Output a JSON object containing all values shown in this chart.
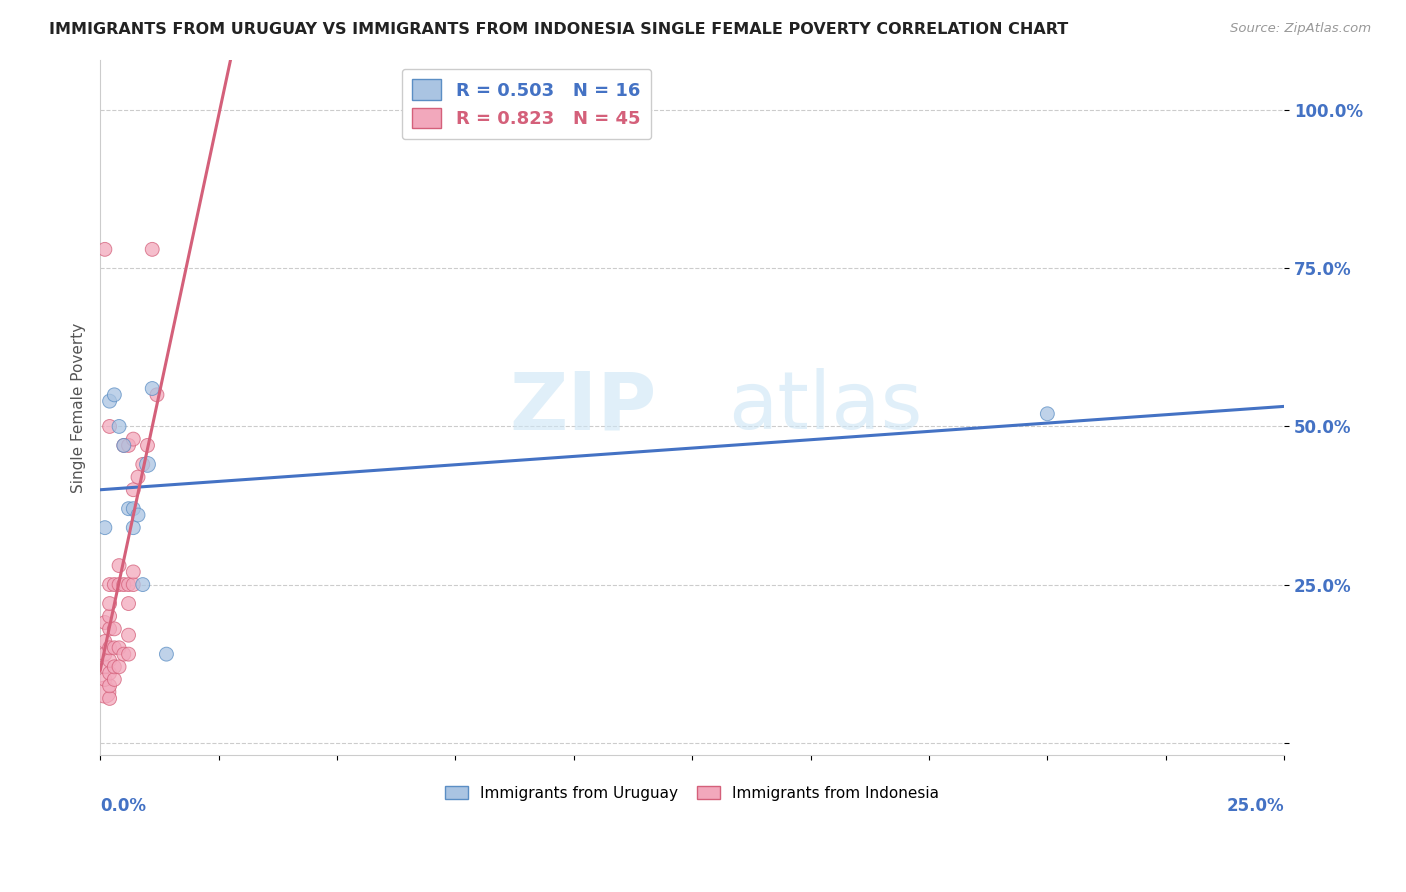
{
  "title": "IMMIGRANTS FROM URUGUAY VS IMMIGRANTS FROM INDONESIA SINGLE FEMALE POVERTY CORRELATION CHART",
  "source": "Source: ZipAtlas.com",
  "ylabel": "Single Female Poverty",
  "xlim": [
    0.0,
    0.25
  ],
  "ylim": [
    -0.02,
    1.08
  ],
  "yticks": [
    0.0,
    0.25,
    0.5,
    0.75,
    1.0
  ],
  "ytick_labels": [
    "",
    "25.0%",
    "50.0%",
    "75.0%",
    "100.0%"
  ],
  "watermark_zip": "ZIP",
  "watermark_atlas": "atlas",
  "uruguay_color": "#aac4e2",
  "indonesia_color": "#f2a8bc",
  "uruguay_edge_color": "#5b8ec4",
  "indonesia_edge_color": "#d4607a",
  "uruguay_line_color": "#4472c4",
  "indonesia_line_color": "#d4607a",
  "uruguay_R": 0.503,
  "uruguay_N": 16,
  "indonesia_R": 0.823,
  "indonesia_N": 45,
  "uruguay_points_x": [
    0.001,
    0.002,
    0.003,
    0.004,
    0.005,
    0.006,
    0.007,
    0.007,
    0.008,
    0.009,
    0.01,
    0.011,
    0.014,
    0.2
  ],
  "uruguay_points_y": [
    0.34,
    0.54,
    0.55,
    0.5,
    0.47,
    0.37,
    0.34,
    0.37,
    0.36,
    0.25,
    0.44,
    0.56,
    0.14,
    0.52
  ],
  "uruguay_sizes": [
    100,
    100,
    100,
    100,
    100,
    100,
    100,
    100,
    100,
    100,
    130,
    100,
    100,
    100
  ],
  "indonesia_points_x": [
    0.001,
    0.001,
    0.001,
    0.001,
    0.001,
    0.001,
    0.001,
    0.002,
    0.002,
    0.002,
    0.002,
    0.002,
    0.002,
    0.002,
    0.002,
    0.002,
    0.002,
    0.003,
    0.003,
    0.003,
    0.003,
    0.003,
    0.004,
    0.004,
    0.004,
    0.004,
    0.005,
    0.005,
    0.005,
    0.006,
    0.006,
    0.006,
    0.006,
    0.006,
    0.007,
    0.007,
    0.007,
    0.007,
    0.008,
    0.009,
    0.01,
    0.011,
    0.012
  ],
  "indonesia_points_y": [
    0.08,
    0.1,
    0.12,
    0.14,
    0.16,
    0.19,
    0.78,
    0.07,
    0.09,
    0.11,
    0.13,
    0.15,
    0.18,
    0.2,
    0.22,
    0.25,
    0.5,
    0.1,
    0.12,
    0.15,
    0.18,
    0.25,
    0.12,
    0.15,
    0.25,
    0.28,
    0.14,
    0.25,
    0.47,
    0.14,
    0.17,
    0.22,
    0.25,
    0.47,
    0.25,
    0.27,
    0.4,
    0.48,
    0.42,
    0.44,
    0.47,
    0.78,
    0.55
  ],
  "indonesia_sizes": [
    250,
    100,
    100,
    100,
    100,
    100,
    100,
    100,
    100,
    100,
    100,
    100,
    100,
    100,
    100,
    100,
    100,
    100,
    100,
    100,
    100,
    100,
    100,
    100,
    100,
    100,
    100,
    100,
    100,
    100,
    100,
    100,
    100,
    100,
    100,
    100,
    100,
    100,
    100,
    100,
    100,
    100,
    100
  ],
  "bg_color": "#ffffff",
  "grid_color": "#cccccc",
  "spine_color": "#cccccc"
}
